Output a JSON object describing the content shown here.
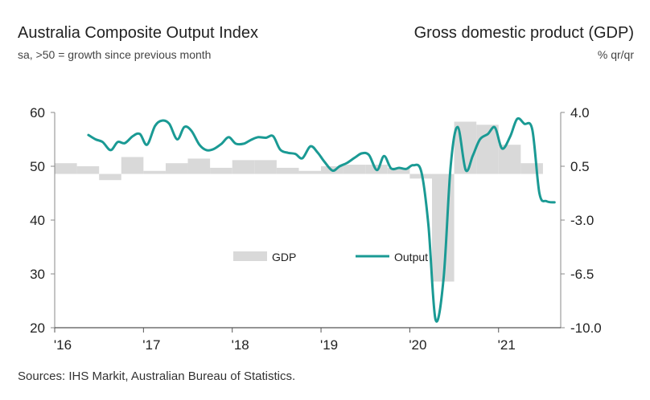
{
  "header": {
    "left_title": "Australia Composite Output Index",
    "left_subtitle": "sa, >50 = growth since previous month",
    "right_title": "Gross domestic product (GDP)",
    "right_subtitle": "% qr/qr"
  },
  "source": "Sources: IHS Markit, Australian Bureau of Statistics.",
  "colors": {
    "output": "#1a9a94",
    "gdp": "#d9d9d9",
    "axis": "#888888"
  },
  "chart_data": {
    "type": "bar+line",
    "left_axis": {
      "ticks": [
        "60",
        "50",
        "40",
        "30",
        "20"
      ],
      "values": [
        60,
        50,
        40,
        30,
        20
      ],
      "ylim": [
        20,
        60
      ]
    },
    "right_axis": {
      "ticks": [
        "4.0",
        "0.5",
        "-3.0",
        "-6.5",
        "-10.0"
      ],
      "values": [
        4.0,
        0.5,
        -3.0,
        -6.5,
        -10.0
      ],
      "ylim": [
        -10.0,
        4.0
      ]
    },
    "x_axis": {
      "ticks": [
        "'16",
        "'17",
        "'18",
        "'19",
        "'20",
        "'21"
      ],
      "values": [
        2016,
        2017,
        2018,
        2019,
        2020,
        2021
      ],
      "xlim": [
        2016.0,
        2021.7
      ]
    },
    "legend": {
      "gdp_label": "GDP",
      "output_label": "Output"
    },
    "series": [
      {
        "name": "GDP",
        "axis": "right",
        "kind": "bar",
        "quarters": [
          {
            "start": 2016.0,
            "end": 2016.25,
            "value": 0.7
          },
          {
            "start": 2016.25,
            "end": 2016.5,
            "value": 0.5
          },
          {
            "start": 2016.5,
            "end": 2016.75,
            "value": -0.4
          },
          {
            "start": 2016.75,
            "end": 2017.0,
            "value": 1.1
          },
          {
            "start": 2017.0,
            "end": 2017.25,
            "value": 0.2
          },
          {
            "start": 2017.25,
            "end": 2017.5,
            "value": 0.7
          },
          {
            "start": 2017.5,
            "end": 2017.75,
            "value": 1.0
          },
          {
            "start": 2017.75,
            "end": 2018.0,
            "value": 0.4
          },
          {
            "start": 2018.0,
            "end": 2018.25,
            "value": 0.9
          },
          {
            "start": 2018.25,
            "end": 2018.5,
            "value": 0.9
          },
          {
            "start": 2018.5,
            "end": 2018.75,
            "value": 0.4
          },
          {
            "start": 2018.75,
            "end": 2019.0,
            "value": 0.2
          },
          {
            "start": 2019.0,
            "end": 2019.25,
            "value": 0.5
          },
          {
            "start": 2019.25,
            "end": 2019.5,
            "value": 0.6
          },
          {
            "start": 2019.5,
            "end": 2019.75,
            "value": 0.6
          },
          {
            "start": 2019.75,
            "end": 2020.0,
            "value": 0.4
          },
          {
            "start": 2020.0,
            "end": 2020.25,
            "value": -0.3
          },
          {
            "start": 2020.25,
            "end": 2020.5,
            "value": -7.0
          },
          {
            "start": 2020.5,
            "end": 2020.75,
            "value": 3.4
          },
          {
            "start": 2020.75,
            "end": 2021.0,
            "value": 3.2
          },
          {
            "start": 2021.0,
            "end": 2021.25,
            "value": 1.9
          },
          {
            "start": 2021.25,
            "end": 2021.5,
            "value": 0.7
          }
        ]
      },
      {
        "name": "Output",
        "axis": "left",
        "kind": "line",
        "x": [
          2016.38,
          2016.46,
          2016.54,
          2016.63,
          2016.71,
          2016.79,
          2016.88,
          2016.96,
          2017.04,
          2017.13,
          2017.21,
          2017.29,
          2017.38,
          2017.46,
          2017.54,
          2017.63,
          2017.71,
          2017.79,
          2017.88,
          2017.96,
          2018.04,
          2018.13,
          2018.21,
          2018.29,
          2018.38,
          2018.46,
          2018.54,
          2018.63,
          2018.71,
          2018.79,
          2018.88,
          2018.96,
          2019.04,
          2019.13,
          2019.21,
          2019.29,
          2019.38,
          2019.46,
          2019.54,
          2019.63,
          2019.71,
          2019.79,
          2019.88,
          2019.96,
          2020.04,
          2020.13,
          2020.21,
          2020.29,
          2020.38,
          2020.46,
          2020.54,
          2020.63,
          2020.71,
          2020.79,
          2020.88,
          2020.96,
          2021.04,
          2021.13,
          2021.21,
          2021.29,
          2021.38,
          2021.46,
          2021.54,
          2021.63
        ],
        "values": [
          55.8,
          55.0,
          54.5,
          53.0,
          54.5,
          54.3,
          55.6,
          56.0,
          54.0,
          57.5,
          58.5,
          57.9,
          55.0,
          57.3,
          56.6,
          54.0,
          53.0,
          53.2,
          54.2,
          55.4,
          54.2,
          54.2,
          54.9,
          55.4,
          55.3,
          55.6,
          53.1,
          52.5,
          52.3,
          51.5,
          53.7,
          52.6,
          50.8,
          49.2,
          50.0,
          50.6,
          51.6,
          52.4,
          52.1,
          49.3,
          51.9,
          49.6,
          49.7,
          49.5,
          50.2,
          49.0,
          39.0,
          21.5,
          29.0,
          50.0,
          57.3,
          49.3,
          52.0,
          55.0,
          56.0,
          57.2,
          53.3,
          55.5,
          58.8,
          57.9,
          56.8,
          45.0,
          43.5,
          43.3
        ]
      }
    ]
  }
}
